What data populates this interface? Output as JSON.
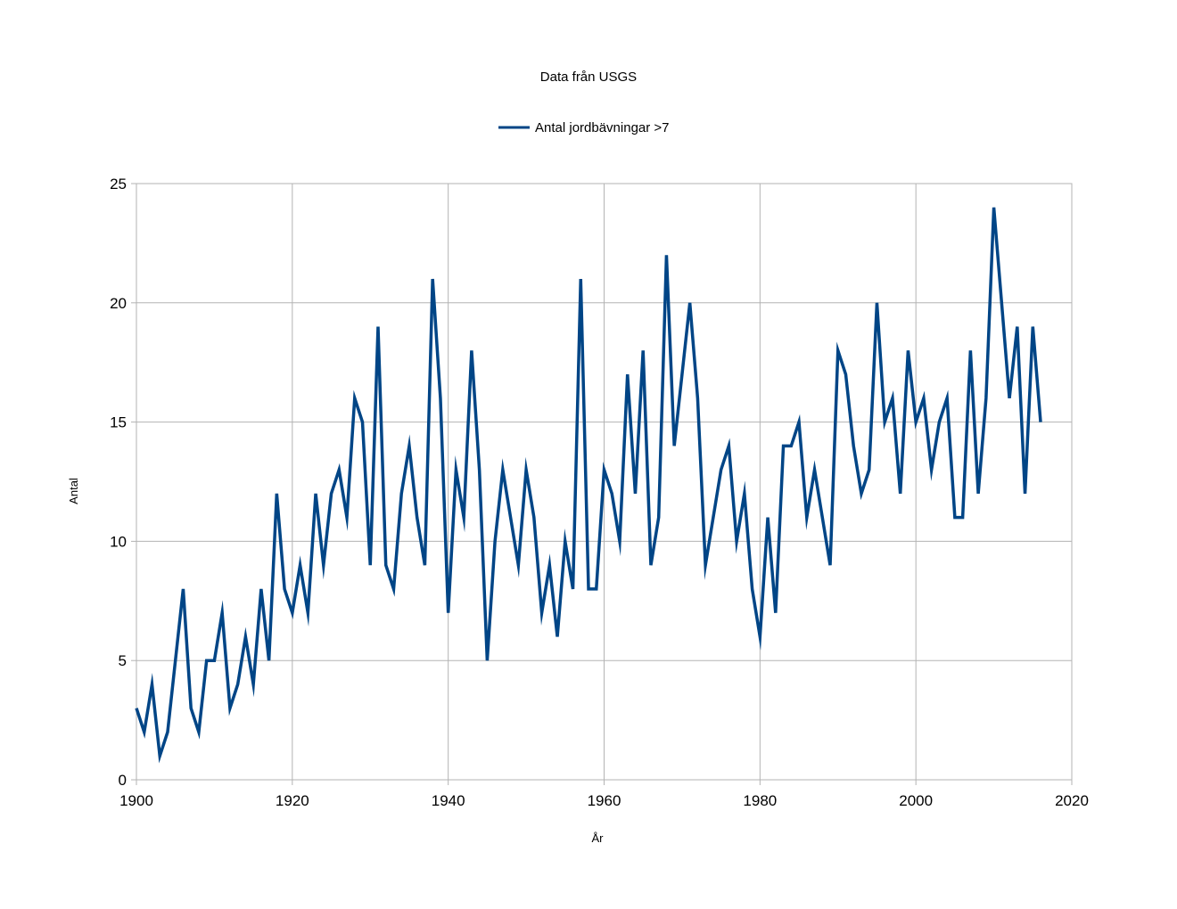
{
  "chart_data": {
    "type": "line",
    "title": "Data från USGS",
    "xlabel": "År",
    "ylabel": "Antal",
    "xlim": [
      1900,
      2020
    ],
    "ylim": [
      0,
      25
    ],
    "x_ticks": [
      1900,
      1920,
      1940,
      1960,
      1980,
      2000,
      2020
    ],
    "y_ticks": [
      0,
      5,
      10,
      15,
      20,
      25
    ],
    "grid": true,
    "legend": "top-center",
    "series": [
      {
        "name": "Antal jordbävningar >7",
        "color": "#004586",
        "x": [
          1900,
          1901,
          1902,
          1903,
          1904,
          1905,
          1906,
          1907,
          1908,
          1909,
          1910,
          1911,
          1912,
          1913,
          1914,
          1915,
          1916,
          1917,
          1918,
          1919,
          1920,
          1921,
          1922,
          1923,
          1924,
          1925,
          1926,
          1927,
          1928,
          1929,
          1930,
          1931,
          1932,
          1933,
          1934,
          1935,
          1936,
          1937,
          1938,
          1939,
          1940,
          1941,
          1942,
          1943,
          1944,
          1945,
          1946,
          1947,
          1948,
          1949,
          1950,
          1951,
          1952,
          1953,
          1954,
          1955,
          1956,
          1957,
          1958,
          1959,
          1960,
          1961,
          1962,
          1963,
          1964,
          1965,
          1966,
          1967,
          1968,
          1969,
          1970,
          1971,
          1972,
          1973,
          1974,
          1975,
          1976,
          1977,
          1978,
          1979,
          1980,
          1981,
          1982,
          1983,
          1984,
          1985,
          1986,
          1987,
          1988,
          1989,
          1990,
          1991,
          1992,
          1993,
          1994,
          1995,
          1996,
          1997,
          1998,
          1999,
          2000,
          2001,
          2002,
          2003,
          2004,
          2005,
          2006,
          2007,
          2008,
          2009,
          2010,
          2011,
          2012,
          2013,
          2014,
          2015,
          2016
        ],
        "values": [
          3,
          2,
          4,
          1,
          2,
          5,
          8,
          3,
          2,
          5,
          5,
          7,
          3,
          4,
          6,
          4,
          8,
          5,
          12,
          8,
          7,
          9,
          7,
          12,
          9,
          12,
          13,
          11,
          16,
          15,
          9,
          19,
          9,
          8,
          12,
          14,
          11,
          9,
          21,
          16,
          7,
          13,
          11,
          18,
          13,
          5,
          10,
          13,
          11,
          9,
          13,
          11,
          7,
          9,
          6,
          10,
          8,
          21,
          8,
          8,
          13,
          12,
          10,
          17,
          12,
          18,
          9,
          11,
          22,
          14,
          17,
          20,
          16,
          9,
          11,
          13,
          14,
          10,
          12,
          8,
          6,
          11,
          7,
          14,
          14,
          15,
          11,
          13,
          11,
          9,
          18,
          17,
          14,
          12,
          13,
          20,
          15,
          16,
          12,
          18,
          15,
          16,
          13,
          15,
          16,
          11,
          11,
          18,
          12,
          16,
          24,
          20,
          16,
          19,
          12,
          19,
          15
        ]
      }
    ]
  }
}
